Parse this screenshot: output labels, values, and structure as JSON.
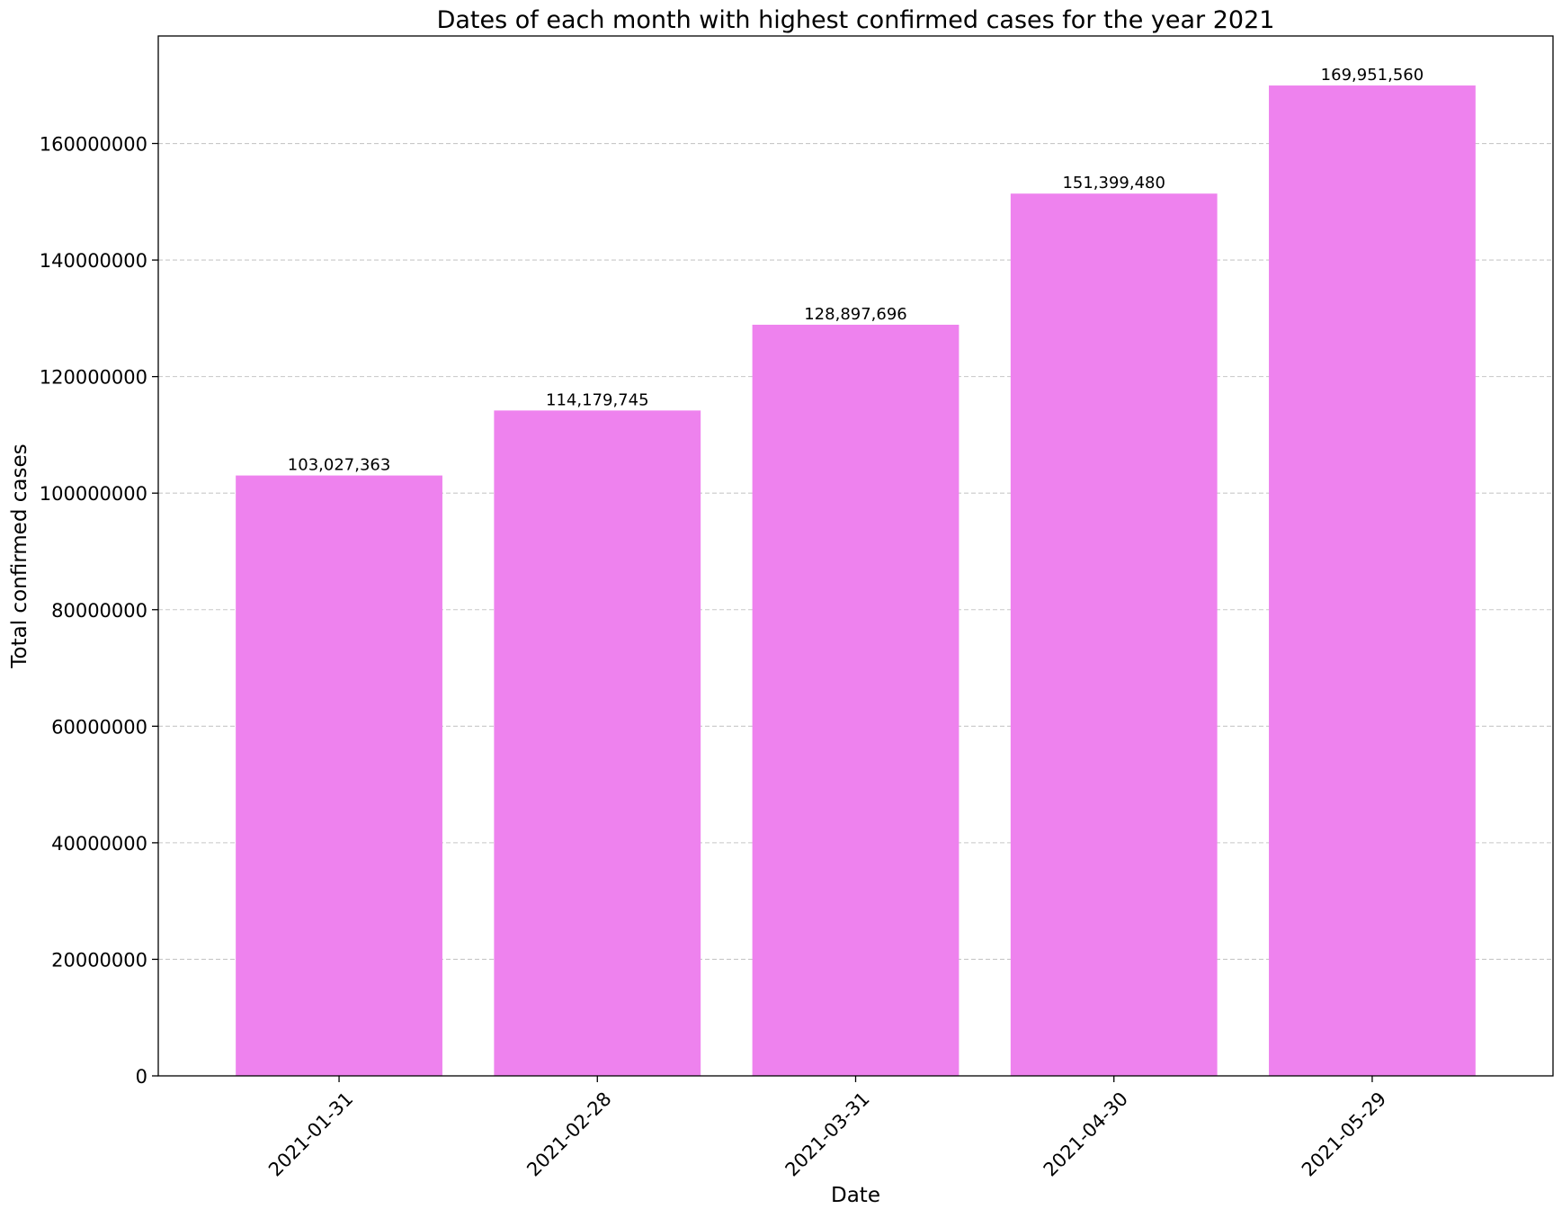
{
  "chart_data": {
    "type": "bar",
    "title": "Dates of each month with highest confirmed cases for the year 2021",
    "xlabel": "Date",
    "ylabel": "Total confirmed cases",
    "categories": [
      "2021-01-31",
      "2021-02-28",
      "2021-03-31",
      "2021-04-30",
      "2021-05-29"
    ],
    "values": [
      103027363,
      114179745,
      128897696,
      151399480,
      169951560
    ],
    "data_labels": [
      "103,027,363",
      "114,179,745",
      "128,897,696",
      "151,399,480",
      "169,951,560"
    ],
    "ylim": [
      0,
      178449138
    ],
    "yticks": [
      0,
      20000000,
      40000000,
      60000000,
      80000000,
      100000000,
      120000000,
      140000000,
      160000000
    ],
    "ytick_labels": [
      "0",
      "20000000",
      "40000000",
      "60000000",
      "80000000",
      "100000000",
      "120000000",
      "140000000",
      "160000000"
    ],
    "grid": {
      "y": true,
      "x": false,
      "style": "dashed"
    },
    "legend": "none",
    "colors": {
      "bar": "#EE82EE",
      "grid": "#c8c8c8",
      "axis": "#000000"
    }
  }
}
